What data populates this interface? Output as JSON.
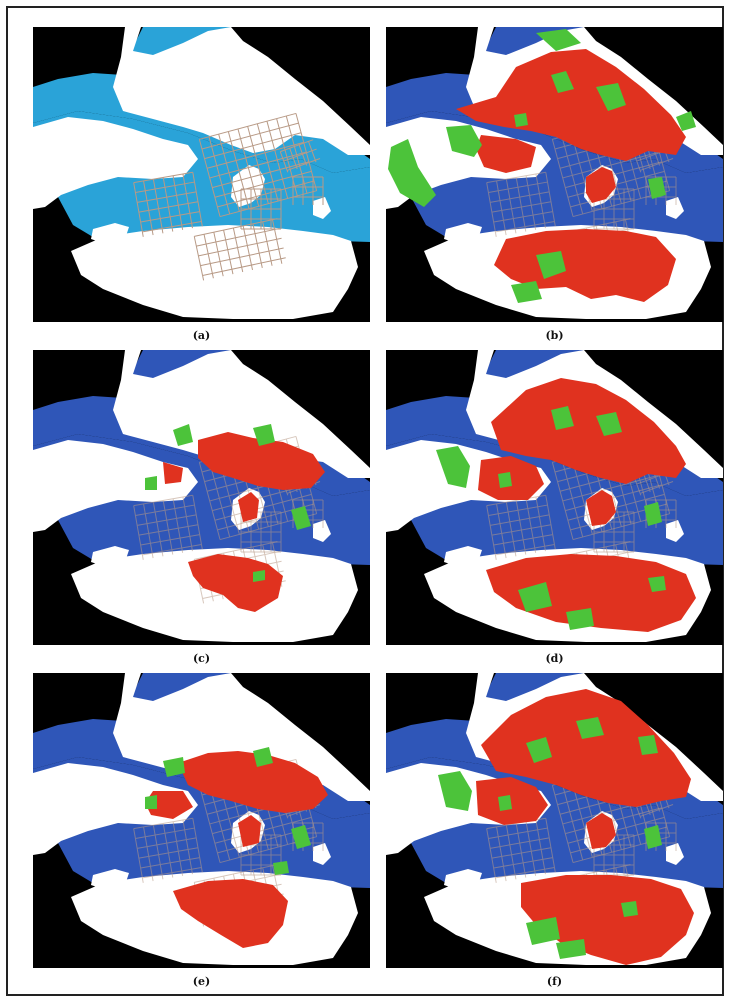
{
  "figure": {
    "panels": [
      {
        "id": "a",
        "caption": "(a)",
        "variant": "street-network"
      },
      {
        "id": "b",
        "caption": "(b)",
        "variant": "dense-red-green"
      },
      {
        "id": "c",
        "caption": "(c)",
        "variant": "sparse-red"
      },
      {
        "id": "d",
        "caption": "(d)",
        "variant": "wide-red"
      },
      {
        "id": "e",
        "caption": "(e)",
        "variant": "medium-red"
      },
      {
        "id": "f",
        "caption": "(f)",
        "variant": "very-wide-red"
      }
    ]
  },
  "colors": {
    "background": "#000000",
    "land": "#ffffff",
    "water_light": "#2aa3d8",
    "water_dark": "#2f56b8",
    "urban": "#e0321f",
    "green": "#4cc33a",
    "streets": "#b89a86"
  }
}
